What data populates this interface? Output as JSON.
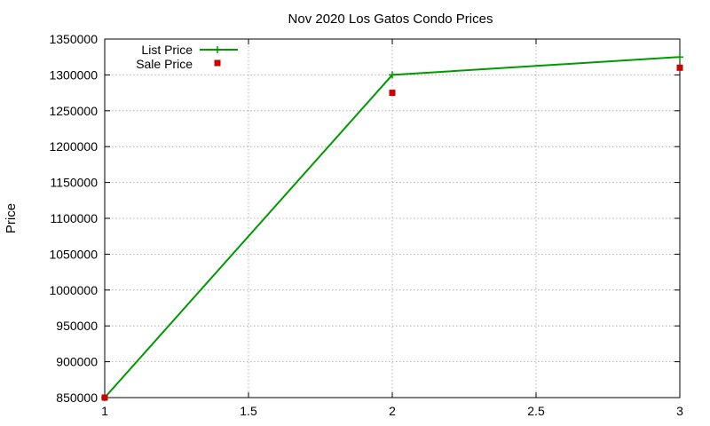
{
  "chart_data": {
    "type": "line",
    "title": "Nov 2020 Los Gatos Condo Prices",
    "xlabel": "",
    "ylabel": "Price",
    "xlim": [
      1,
      3
    ],
    "ylim": [
      850000,
      1350000
    ],
    "x_ticks": [
      "1",
      "1.5",
      "2",
      "2.5",
      "3"
    ],
    "y_ticks": [
      "850000",
      "900000",
      "950000",
      "1000000",
      "1050000",
      "1100000",
      "1150000",
      "1200000",
      "1250000",
      "1300000",
      "1350000"
    ],
    "grid": true,
    "legend_position": "top-left",
    "series": [
      {
        "name": "List Price",
        "style": "line-with-plus-markers",
        "color": "#009900",
        "x": [
          1,
          2,
          3
        ],
        "y": [
          850000,
          1300000,
          1325000
        ]
      },
      {
        "name": "Sale Price",
        "style": "square-markers",
        "color": "#cc0000",
        "x": [
          1,
          2,
          3
        ],
        "y": [
          850000,
          1275000,
          1310000
        ]
      }
    ]
  }
}
